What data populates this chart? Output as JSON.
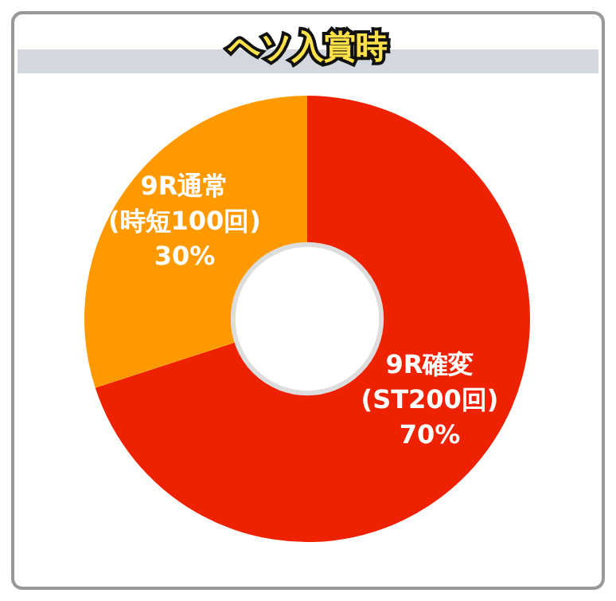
{
  "chart_data": {
    "type": "donut",
    "title": "ヘソ入賞時",
    "categories": [
      "9R確変(ST200回)",
      "9R通常(時短100回)"
    ],
    "values": [
      70,
      30
    ],
    "colors": [
      "#ee2200",
      "#ff9900"
    ],
    "value_labels": [
      "70%",
      "30%"
    ]
  }
}
